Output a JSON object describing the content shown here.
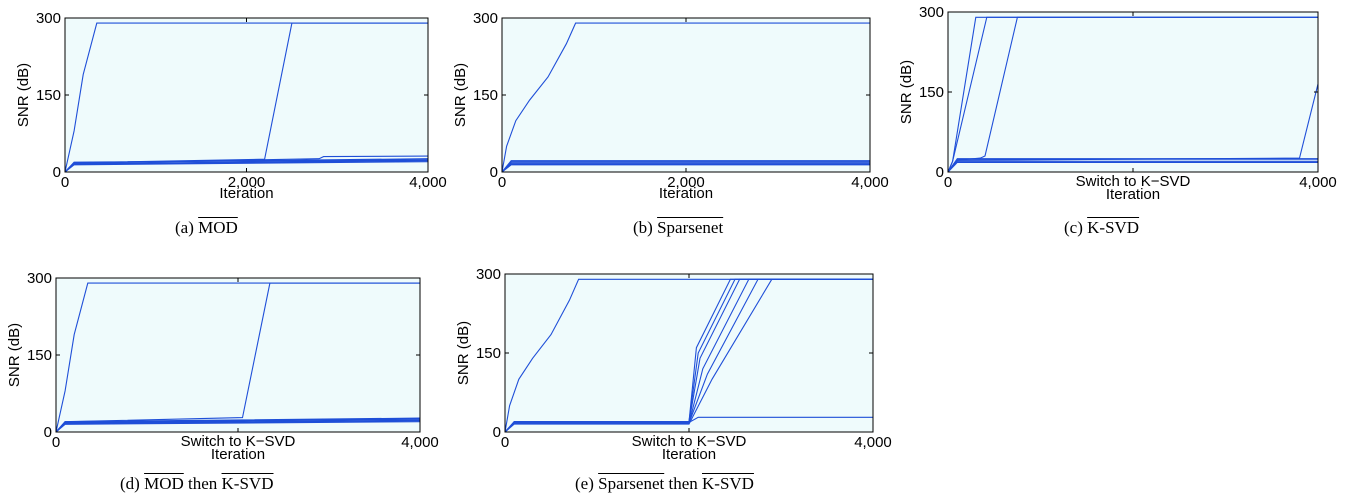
{
  "chart_data": [
    {
      "id": "a",
      "type": "line",
      "caption_prefix": "(a)",
      "caption_algos": [
        "MOD"
      ],
      "caption_joiner": "",
      "xlabel": "Iteration",
      "ylabel": "SNR (dB)",
      "xlim": [
        0,
        4000
      ],
      "ylim": [
        0,
        300
      ],
      "xticks": [
        0,
        2000,
        4000
      ],
      "xtick_labels": [
        "0",
        "2,000",
        "4,000"
      ],
      "yticks": [
        0,
        150,
        300
      ],
      "ytick_labels": [
        "0",
        "150",
        "300"
      ],
      "switch_label": "",
      "background": "#effbfc",
      "line_color": "#1f4fd8",
      "series": [
        {
          "x": [
            0,
            100,
            200,
            350,
            4000
          ],
          "y": [
            0,
            80,
            190,
            290,
            290
          ]
        },
        {
          "x": [
            0,
            100,
            2200,
            2500,
            4000
          ],
          "y": [
            0,
            18,
            25,
            290,
            290
          ]
        },
        {
          "x": [
            0,
            100,
            4000
          ],
          "y": [
            0,
            18,
            26
          ]
        },
        {
          "x": [
            0,
            100,
            4000
          ],
          "y": [
            0,
            16,
            23
          ]
        },
        {
          "x": [
            0,
            100,
            4000
          ],
          "y": [
            0,
            15,
            22
          ]
        },
        {
          "x": [
            0,
            100,
            2800,
            2850,
            4000
          ],
          "y": [
            0,
            17,
            26,
            30,
            31
          ]
        },
        {
          "x": [
            0,
            100,
            4000
          ],
          "y": [
            0,
            14,
            20
          ]
        },
        {
          "x": [
            0,
            100,
            4000
          ],
          "y": [
            0,
            19,
            24
          ]
        }
      ]
    },
    {
      "id": "b",
      "type": "line",
      "caption_prefix": "(b)",
      "caption_algos": [
        "Sparsenet"
      ],
      "caption_joiner": "",
      "xlabel": "Iteration",
      "ylabel": "SNR (dB)",
      "xlim": [
        0,
        4000
      ],
      "ylim": [
        0,
        300
      ],
      "xticks": [
        0,
        2000,
        4000
      ],
      "xtick_labels": [
        "0",
        "2,000",
        "4,000"
      ],
      "yticks": [
        0,
        150,
        300
      ],
      "ytick_labels": [
        "0",
        "150",
        "300"
      ],
      "switch_label": "",
      "background": "#effbfc",
      "line_color": "#1f4fd8",
      "series": [
        {
          "x": [
            0,
            50,
            150,
            300,
            500,
            700,
            800,
            4000
          ],
          "y": [
            0,
            50,
            100,
            140,
            185,
            250,
            290,
            290
          ]
        },
        {
          "x": [
            0,
            100,
            4000
          ],
          "y": [
            0,
            22,
            22
          ]
        },
        {
          "x": [
            0,
            100,
            4000
          ],
          "y": [
            0,
            19,
            19
          ]
        },
        {
          "x": [
            0,
            100,
            4000
          ],
          "y": [
            0,
            17,
            17
          ]
        },
        {
          "x": [
            0,
            100,
            4000
          ],
          "y": [
            0,
            15,
            15
          ]
        },
        {
          "x": [
            0,
            100,
            4000
          ],
          "y": [
            0,
            14,
            14
          ]
        },
        {
          "x": [
            0,
            100,
            4000
          ],
          "y": [
            0,
            20,
            20
          ]
        }
      ]
    },
    {
      "id": "c",
      "type": "line",
      "caption_prefix": "(c)",
      "caption_algos": [
        "K-SVD"
      ],
      "caption_joiner": "",
      "xlabel": "Iteration",
      "ylabel": "SNR (dB)",
      "xlim": [
        0,
        4000
      ],
      "ylim": [
        0,
        300
      ],
      "xticks": [
        0,
        2000,
        4000
      ],
      "xtick_labels": [
        "0",
        "",
        "4,000"
      ],
      "yticks": [
        0,
        150,
        300
      ],
      "ytick_labels": [
        "0",
        "150",
        "300"
      ],
      "switch_label": "Switch to K−SVD",
      "background": "#effbfc",
      "line_color": "#1f4fd8",
      "series": [
        {
          "x": [
            0,
            50,
            300,
            4000
          ],
          "y": [
            0,
            20,
            290,
            290
          ]
        },
        {
          "x": [
            0,
            50,
            420,
            4000
          ],
          "y": [
            0,
            20,
            290,
            290
          ]
        },
        {
          "x": [
            0,
            100,
            350,
            400,
            750,
            4000
          ],
          "y": [
            0,
            22,
            26,
            30,
            290,
            290
          ]
        },
        {
          "x": [
            0,
            100,
            3800,
            4000
          ],
          "y": [
            0,
            22,
            26,
            165
          ]
        },
        {
          "x": [
            0,
            100,
            4000
          ],
          "y": [
            0,
            24,
            24
          ]
        },
        {
          "x": [
            0,
            100,
            4000
          ],
          "y": [
            0,
            20,
            20
          ]
        },
        {
          "x": [
            0,
            100,
            4000
          ],
          "y": [
            0,
            18,
            18
          ]
        },
        {
          "x": [
            0,
            100,
            4000
          ],
          "y": [
            0,
            25,
            25
          ]
        }
      ]
    },
    {
      "id": "d",
      "type": "line",
      "caption_prefix": "(d)",
      "caption_algos": [
        "MOD",
        "K-SVD"
      ],
      "caption_joiner": "then",
      "xlabel": "Iteration",
      "ylabel": "SNR (dB)",
      "xlim": [
        0,
        4000
      ],
      "ylim": [
        0,
        300
      ],
      "xticks": [
        0,
        2000,
        4000
      ],
      "xtick_labels": [
        "0",
        "",
        "4,000"
      ],
      "yticks": [
        0,
        150,
        300
      ],
      "ytick_labels": [
        "0",
        "150",
        "300"
      ],
      "switch_label": "Switch to K−SVD",
      "background": "#effbfc",
      "line_color": "#1f4fd8",
      "series": [
        {
          "x": [
            0,
            100,
            200,
            350,
            4000
          ],
          "y": [
            0,
            80,
            190,
            290,
            290
          ]
        },
        {
          "x": [
            0,
            100,
            2050,
            2350,
            4000
          ],
          "y": [
            0,
            20,
            28,
            290,
            290
          ]
        },
        {
          "x": [
            0,
            100,
            4000
          ],
          "y": [
            0,
            20,
            27
          ]
        },
        {
          "x": [
            0,
            100,
            4000
          ],
          "y": [
            0,
            18,
            25
          ]
        },
        {
          "x": [
            0,
            100,
            4000
          ],
          "y": [
            0,
            17,
            23
          ]
        },
        {
          "x": [
            0,
            100,
            4000
          ],
          "y": [
            0,
            16,
            22
          ]
        },
        {
          "x": [
            0,
            100,
            4000
          ],
          "y": [
            0,
            15,
            20
          ]
        },
        {
          "x": [
            0,
            100,
            4000
          ],
          "y": [
            0,
            19,
            26
          ]
        }
      ]
    },
    {
      "id": "e",
      "type": "line",
      "caption_prefix": "(e)",
      "caption_algos": [
        "Sparsenet",
        "K-SVD"
      ],
      "caption_joiner": "then",
      "xlabel": "Iteration",
      "ylabel": "SNR (dB)",
      "xlim": [
        0,
        4000
      ],
      "ylim": [
        0,
        300
      ],
      "xticks": [
        0,
        2000,
        4000
      ],
      "xtick_labels": [
        "0",
        "",
        "4,000"
      ],
      "yticks": [
        0,
        150,
        300
      ],
      "ytick_labels": [
        "0",
        "150",
        "300"
      ],
      "switch_label": "Switch to K−SVD",
      "background": "#effbfc",
      "line_color": "#1f4fd8",
      "series": [
        {
          "x": [
            0,
            50,
            150,
            300,
            500,
            700,
            800,
            4000
          ],
          "y": [
            0,
            50,
            100,
            140,
            185,
            250,
            290,
            290
          ]
        },
        {
          "x": [
            0,
            100,
            2000,
            2100,
            2500,
            4000
          ],
          "y": [
            0,
            20,
            20,
            150,
            290,
            290
          ]
        },
        {
          "x": [
            0,
            100,
            2000,
            2120,
            2550,
            4000
          ],
          "y": [
            0,
            18,
            18,
            140,
            290,
            290
          ]
        },
        {
          "x": [
            0,
            100,
            2000,
            2150,
            2650,
            4000
          ],
          "y": [
            0,
            16,
            16,
            120,
            290,
            290
          ]
        },
        {
          "x": [
            0,
            100,
            2000,
            2200,
            2750,
            4000
          ],
          "y": [
            0,
            17,
            17,
            110,
            290,
            290
          ]
        },
        {
          "x": [
            0,
            100,
            2000,
            2250,
            2900,
            4000
          ],
          "y": [
            0,
            15,
            15,
            100,
            290,
            290
          ]
        },
        {
          "x": [
            0,
            100,
            2000,
            2080,
            2450,
            4000
          ],
          "y": [
            0,
            19,
            19,
            160,
            290,
            290
          ]
        },
        {
          "x": [
            0,
            100,
            2000,
            2100,
            4000
          ],
          "y": [
            0,
            18,
            18,
            28,
            28
          ]
        }
      ]
    }
  ]
}
